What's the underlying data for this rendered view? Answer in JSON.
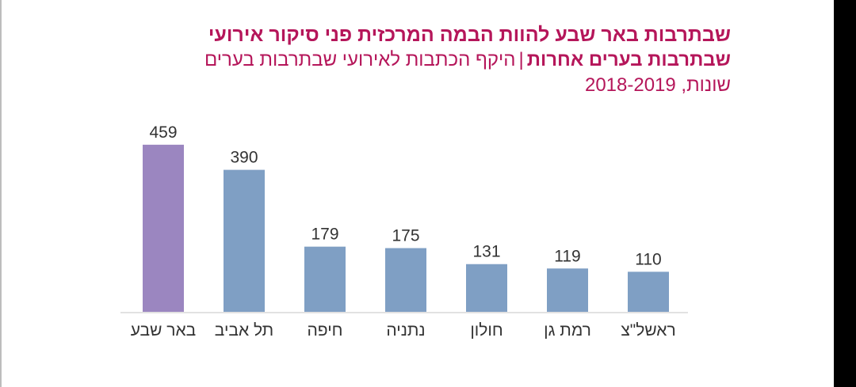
{
  "chart_data": {
    "type": "bar",
    "title": "שבתרבות באר שבע  להוות הבמה המרכזית פני סיקור אירועי",
    "subtitle_bold": "שבתרבות בערים אחרות",
    "subtitle_rest": "היקף הכתבות לאירועי שבתרבות בערים",
    "separator": "|",
    "years": "שונות, 2018-2019",
    "categories": [
      "באר שבע",
      "תל אביב",
      "חיפה",
      "נתניה",
      "חולון",
      "רמת גן",
      "ראשל\"צ"
    ],
    "values": [
      459,
      390,
      179,
      175,
      131,
      119,
      110
    ],
    "colors": [
      "#9b86c0",
      "#7f9fc4",
      "#7f9fc4",
      "#7f9fc4",
      "#7f9fc4",
      "#7f9fc4",
      "#7f9fc4"
    ],
    "ylim": [
      0,
      500
    ],
    "grid": false,
    "legend": "none"
  }
}
